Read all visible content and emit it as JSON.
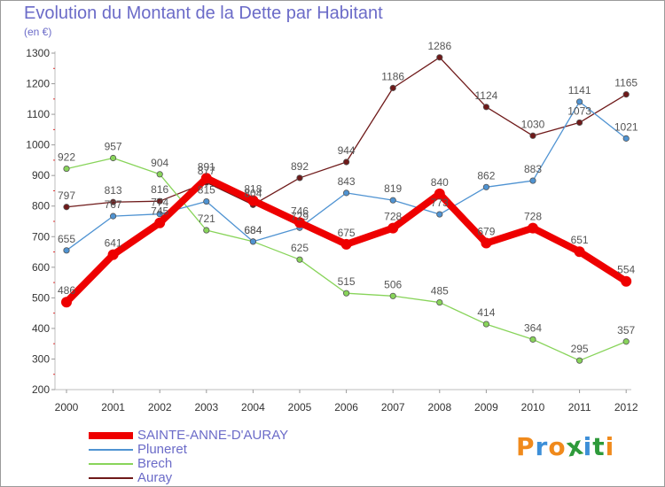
{
  "header": {
    "title": "Evolution du Montant de la Dette par Habitant",
    "subtitle": "(en €)"
  },
  "logo": {
    "text": "Proxiti",
    "letters": [
      "P",
      "r",
      "o",
      "x",
      "i",
      "t",
      "i"
    ],
    "colors": [
      "#f08a1c",
      "#3d8fd8",
      "#f08a1c",
      "#2e9a3a",
      "#3d8fd8",
      "#2e9a3a",
      "#f08a1c"
    ]
  },
  "chart_data": {
    "type": "line",
    "x": [
      "2000",
      "2001",
      "2002",
      "2003",
      "2004",
      "2005",
      "2006",
      "2007",
      "2008",
      "2009",
      "2010",
      "2011",
      "2012"
    ],
    "ylim": [
      200,
      1300
    ],
    "yticks": [
      200,
      300,
      400,
      500,
      600,
      700,
      800,
      900,
      1000,
      1100,
      1200,
      1300
    ],
    "grid": false,
    "legend_position": "bottom-left",
    "series": [
      {
        "name": "SAINTE-ANNE-D'AURAY",
        "color": "#ee0000",
        "values": [
          486,
          641,
          745,
          891,
          818,
          746,
          675,
          728,
          840,
          679,
          728,
          651,
          554
        ]
      },
      {
        "name": "Pluneret",
        "color": "#4f93d2",
        "values": [
          655,
          767,
          774,
          815,
          684,
          729,
          843,
          819,
          773,
          862,
          883,
          1141,
          1021
        ]
      },
      {
        "name": "Brech",
        "color": "#88d45a",
        "values": [
          922,
          957,
          904,
          721,
          684,
          625,
          515,
          506,
          485,
          414,
          364,
          295,
          357
        ]
      },
      {
        "name": "Auray",
        "color": "#6f1a1a",
        "values": [
          797,
          813,
          816,
          877,
          804,
          892,
          944,
          1186,
          1286,
          1124,
          1030,
          1073,
          1165
        ]
      }
    ]
  }
}
